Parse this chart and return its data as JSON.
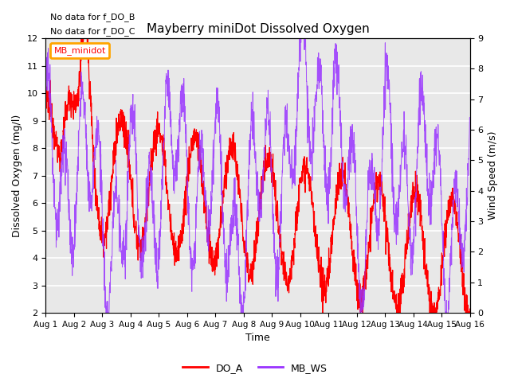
{
  "title": "Mayberry miniDot Dissolved Oxygen",
  "xlabel": "Time",
  "ylabel_left": "Dissolved Oxygen (mg/l)",
  "ylabel_right": "Wind Speed (m/s)",
  "ylim_left": [
    2.0,
    12.0
  ],
  "ylim_right": [
    0.0,
    9.0
  ],
  "yticks_left": [
    2.0,
    3.0,
    4.0,
    5.0,
    6.0,
    7.0,
    8.0,
    9.0,
    10.0,
    11.0,
    12.0
  ],
  "yticks_right": [
    0.0,
    1.0,
    2.0,
    3.0,
    4.0,
    5.0,
    6.0,
    7.0,
    8.0,
    9.0
  ],
  "xtick_labels": [
    "Aug 1",
    "Aug 2",
    "Aug 3",
    "Aug 4",
    "Aug 5",
    "Aug 6",
    "Aug 7",
    "Aug 8",
    "Aug 9",
    "Aug 10",
    "Aug 11",
    "Aug 12",
    "Aug 13",
    "Aug 14",
    "Aug 15",
    "Aug 16"
  ],
  "annotations": [
    "No data for f_DO_B",
    "No data for f_DO_C"
  ],
  "legend_box_label": "MB_minidot",
  "legend_items": [
    {
      "label": "DO_A",
      "color": "#ff0000",
      "linestyle": "-"
    },
    {
      "label": "MB_WS",
      "color": "#9933ff",
      "linestyle": "-"
    }
  ],
  "do_color": "#ff0000",
  "ws_color": "#9933ff",
  "bg_color": "#e8e8e8",
  "grid_color": "#ffffff"
}
